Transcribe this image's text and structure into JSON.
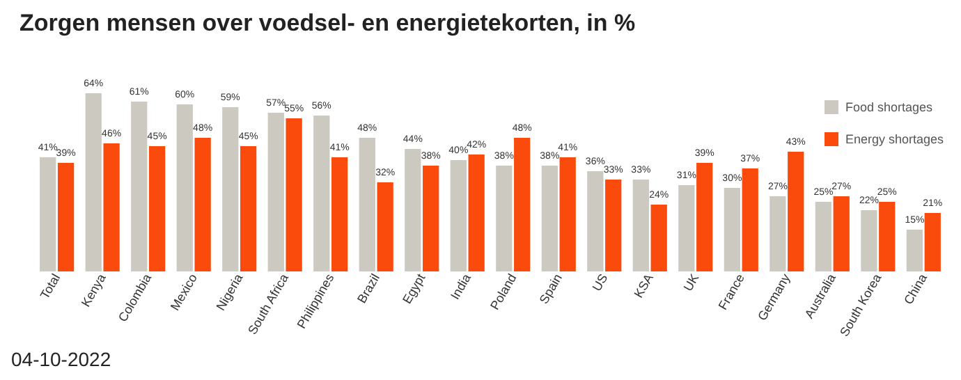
{
  "chart_data": {
    "type": "bar",
    "title": "Zorgen mensen over voedsel- en energietekorten, in %",
    "categories": [
      "Total",
      "Kenya",
      "Colombia",
      "Mexico",
      "Nigeria",
      "South Africa",
      "Philippines",
      "Brazil",
      "Egypt",
      "India",
      "Poland",
      "Spain",
      "US",
      "KSA",
      "UK",
      "France",
      "Germany",
      "Australia",
      "South Korea",
      "China"
    ],
    "series": [
      {
        "name": "Food shortages",
        "color": "#ccc9c1",
        "values": [
          41,
          64,
          61,
          60,
          59,
          57,
          56,
          48,
          44,
          40,
          38,
          38,
          36,
          33,
          31,
          30,
          27,
          25,
          22,
          15
        ],
        "value_labels": [
          "41%",
          "64%",
          "61%",
          "60%",
          "59%",
          "57%",
          "56%",
          "48%",
          "44%",
          "40%",
          "38%",
          "38%",
          "36%",
          "33%",
          "31%",
          "30%",
          "27%",
          "25%",
          "22%",
          "15%"
        ]
      },
      {
        "name": "Energy shortages",
        "color": "#fa4a0c",
        "values": [
          39,
          46,
          45,
          48,
          45,
          55,
          41,
          32,
          38,
          42,
          48,
          41,
          33,
          24,
          39,
          37,
          43,
          27,
          25,
          21
        ],
        "value_labels": [
          "39%",
          "46%",
          "45%",
          "48%",
          "45%",
          "55%",
          "41%",
          "32%",
          "38%",
          "42%",
          "48%",
          "41%",
          "33%",
          "24%",
          "39%",
          "37%",
          "43%",
          "27%",
          "25%",
          "21%"
        ]
      }
    ],
    "legend": "top right",
    "grid": false,
    "annotations": [
      "04-10-2022"
    ]
  }
}
